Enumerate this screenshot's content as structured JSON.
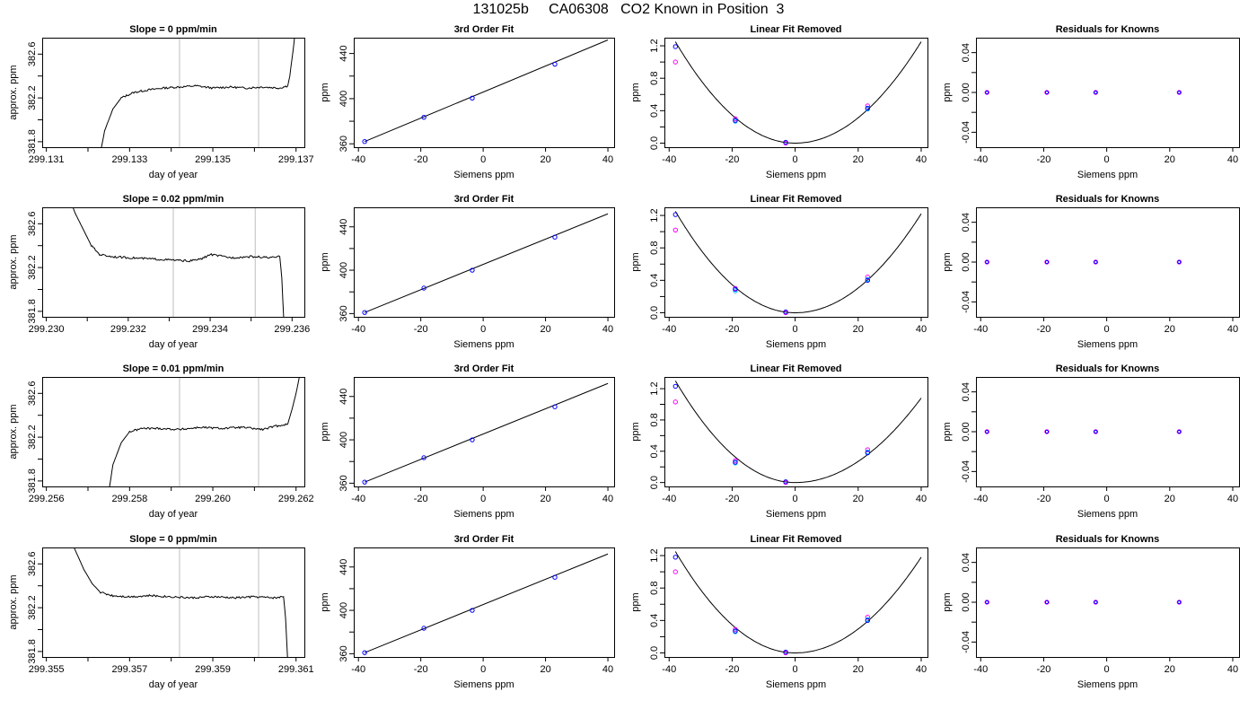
{
  "title": "131025b     CA06308   CO2 Known in Position  3",
  "colors": {
    "axis": "#000000",
    "line": "#000000",
    "vline": "#bebebe",
    "pt_blue": "#0000ff",
    "pt_magenta": "#ff00ff",
    "pt_cyan": "#00bfff"
  },
  "chart_data": [
    {
      "row": 1,
      "col": 1,
      "type": "line",
      "title": "Slope =  0  ppm/min",
      "xlabel": "day of year",
      "ylabel": "approx. ppm",
      "xlim": [
        299.1309,
        299.1372
      ],
      "ylim": [
        381.75,
        382.75
      ],
      "xticks": [
        299.131,
        299.132,
        299.133,
        299.134,
        299.135,
        299.136,
        299.137
      ],
      "xticklabels": [
        "299.131",
        "",
        "299.133",
        "",
        "299.135",
        "",
        "299.137"
      ],
      "yticks": [
        381.8,
        382.0,
        382.2,
        382.4,
        382.6
      ],
      "yticklabels": [
        "381.8",
        "",
        "382.2",
        "",
        "382.6"
      ],
      "vlines": [
        299.1342,
        299.1361
      ],
      "x": [
        299.1323,
        299.1324,
        299.1326,
        299.1328,
        299.1331,
        299.1334,
        299.1338,
        299.1342,
        299.1346,
        299.135,
        299.1354,
        299.1358,
        299.1362,
        299.1366,
        299.1368,
        299.13685,
        299.1369,
        299.13695,
        299.137
      ],
      "y": [
        381.7,
        381.9,
        382.1,
        382.2,
        382.25,
        382.27,
        382.29,
        382.3,
        382.31,
        382.29,
        382.3,
        382.29,
        382.3,
        382.29,
        382.31,
        382.4,
        382.55,
        382.7,
        382.9
      ]
    },
    {
      "row": 1,
      "col": 2,
      "type": "scatter",
      "title": "3rd Order Fit",
      "xlabel": "Siemens ppm",
      "ylabel": "ppm",
      "xlim": [
        -41.5,
        42
      ],
      "ylim": [
        357,
        454
      ],
      "xticks": [
        -40,
        -20,
        0,
        20,
        40
      ],
      "xticklabels": [
        "-40",
        "-20",
        "0",
        "20",
        "40"
      ],
      "yticks": [
        360,
        380,
        400,
        420,
        440
      ],
      "yticklabels": [
        "360",
        "",
        "400",
        "",
        "440"
      ],
      "fit_line": {
        "x": [
          -38,
          40
        ],
        "y": [
          362,
          452
        ]
      },
      "points": {
        "x": [
          -38,
          -19,
          -3.5,
          23
        ],
        "y": [
          362,
          383.5,
          400.5,
          430.5
        ]
      }
    },
    {
      "row": 1,
      "col": 3,
      "type": "scatter",
      "title": "Linear Fit Removed",
      "xlabel": "Siemens ppm",
      "ylabel": "ppm",
      "xlim": [
        -41.5,
        42
      ],
      "ylim": [
        -0.05,
        1.3
      ],
      "xticks": [
        -40,
        -20,
        0,
        20,
        40
      ],
      "xticklabels": [
        "-40",
        "-20",
        "0",
        "20",
        "40"
      ],
      "yticks": [
        0.0,
        0.2,
        0.4,
        0.6,
        0.8,
        1.0,
        1.2
      ],
      "yticklabels": [
        "0.0",
        "",
        "0.4",
        "",
        "0.8",
        "",
        "1.2"
      ],
      "curve": {
        "vertex_x": 0,
        "vertex_y": 0,
        "left_x": -38,
        "left_y": 1.25,
        "right_x": 40,
        "right_y": 1.25
      },
      "points_blue": {
        "x": [
          -38,
          -19,
          -3,
          23
        ],
        "y": [
          1.19,
          0.28,
          0.01,
          0.43
        ]
      },
      "points_magenta": {
        "x": [
          -38,
          -19,
          -3,
          23
        ],
        "y": [
          1.0,
          0.3,
          0.0,
          0.46
        ]
      },
      "points_cyan": {
        "x": [
          -19,
          23
        ],
        "y": [
          0.27,
          0.42
        ]
      }
    },
    {
      "row": 1,
      "col": 4,
      "type": "scatter",
      "title": "Residuals for Knowns",
      "xlabel": "Siemens ppm",
      "ylabel": "ppm",
      "xlim": [
        -41.5,
        42
      ],
      "ylim": [
        -0.055,
        0.055
      ],
      "xticks": [
        -40,
        -20,
        0,
        20,
        40
      ],
      "xticklabels": [
        "-40",
        "-20",
        "0",
        "20",
        "40"
      ],
      "yticks": [
        -0.04,
        -0.02,
        0.0,
        0.02,
        0.04
      ],
      "yticklabels": [
        "-0.04",
        "",
        "0.00",
        "",
        "0.04"
      ],
      "points": {
        "x": [
          -38,
          -19,
          -3.5,
          23
        ],
        "y": [
          0,
          0,
          0,
          0
        ]
      }
    },
    {
      "row": 2,
      "col": 1,
      "type": "line",
      "title": "Slope =  0.02  ppm/min",
      "xlabel": "day of year",
      "ylabel": "approx. ppm",
      "xlim": [
        299.2299,
        299.2363
      ],
      "ylim": [
        381.75,
        382.75
      ],
      "xticks": [
        299.23,
        299.231,
        299.232,
        299.233,
        299.234,
        299.235,
        299.236
      ],
      "xticklabels": [
        "299.230",
        "",
        "299.232",
        "",
        "299.234",
        "",
        "299.236"
      ],
      "vlines": [
        299.2331,
        299.2351
      ],
      "yticks": [
        381.8,
        382.0,
        382.2,
        382.4,
        382.6
      ],
      "yticklabels": [
        "381.8",
        "",
        "382.2",
        "",
        "382.6"
      ],
      "x": [
        299.2305,
        299.2307,
        299.2309,
        299.2311,
        299.2313,
        299.2316,
        299.232,
        299.2325,
        299.233,
        299.2335,
        299.2338,
        299.234,
        299.2345,
        299.235,
        299.2355,
        299.2357,
        299.23575,
        299.2358
      ],
      "y": [
        382.9,
        382.7,
        382.55,
        382.4,
        382.32,
        382.3,
        382.29,
        382.28,
        382.27,
        382.26,
        382.28,
        382.32,
        382.29,
        382.3,
        382.29,
        382.3,
        382.1,
        381.7
      ]
    },
    {
      "row": 2,
      "col": 2,
      "type": "scatter",
      "title": "3rd Order Fit",
      "xlabel": "Siemens ppm",
      "ylabel": "ppm",
      "xlim": [
        -41.5,
        42
      ],
      "ylim": [
        357,
        458
      ],
      "xticks": [
        -40,
        -20,
        0,
        20,
        40
      ],
      "xticklabels": [
        "-40",
        "-20",
        "0",
        "20",
        "40"
      ],
      "yticks": [
        360,
        380,
        400,
        420,
        440
      ],
      "yticklabels": [
        "360",
        "",
        "400",
        "",
        "440"
      ],
      "fit_line": {
        "x": [
          -38,
          40
        ],
        "y": [
          361,
          452
        ]
      },
      "points": {
        "x": [
          -38,
          -19,
          -3.5,
          23
        ],
        "y": [
          361,
          383.5,
          400,
          430.5
        ]
      }
    },
    {
      "row": 2,
      "col": 3,
      "type": "scatter",
      "title": "Linear Fit Removed",
      "xlabel": "Siemens ppm",
      "ylabel": "ppm",
      "xlim": [
        -41.5,
        42
      ],
      "ylim": [
        -0.05,
        1.3
      ],
      "xticks": [
        -40,
        -20,
        0,
        20,
        40
      ],
      "xticklabels": [
        "-40",
        "-20",
        "0",
        "20",
        "40"
      ],
      "yticks": [
        0.0,
        0.2,
        0.4,
        0.6,
        0.8,
        1.0,
        1.2
      ],
      "yticklabels": [
        "0.0",
        "",
        "0.4",
        "",
        "0.8",
        "",
        "1.2"
      ],
      "curve": {
        "vertex_x": 0,
        "vertex_y": 0,
        "left_x": -38,
        "left_y": 1.25,
        "right_x": 40,
        "right_y": 1.22
      },
      "points_blue": {
        "x": [
          -38,
          -19,
          -3,
          23
        ],
        "y": [
          1.21,
          0.29,
          0.01,
          0.4
        ]
      },
      "points_magenta": {
        "x": [
          -38,
          -19,
          -3,
          23
        ],
        "y": [
          1.02,
          0.3,
          0.0,
          0.44
        ]
      },
      "points_cyan": {
        "x": [
          -19,
          23
        ],
        "y": [
          0.27,
          0.41
        ]
      }
    },
    {
      "row": 2,
      "col": 4,
      "type": "scatter",
      "title": "Residuals for Knowns",
      "xlabel": "Siemens ppm",
      "ylabel": "ppm",
      "xlim": [
        -41.5,
        42
      ],
      "ylim": [
        -0.055,
        0.055
      ],
      "xticks": [
        -40,
        -20,
        0,
        20,
        40
      ],
      "xticklabels": [
        "-40",
        "-20",
        "0",
        "20",
        "40"
      ],
      "yticks": [
        -0.04,
        -0.02,
        0.0,
        0.02,
        0.04
      ],
      "yticklabels": [
        "-0.04",
        "",
        "0.00",
        "",
        "0.04"
      ],
      "points": {
        "x": [
          -38,
          -19,
          -3.5,
          23
        ],
        "y": [
          0,
          0,
          0,
          0
        ]
      }
    },
    {
      "row": 3,
      "col": 1,
      "type": "line",
      "title": "Slope =  0.01  ppm/min",
      "xlabel": "day of year",
      "ylabel": "approx. ppm",
      "xlim": [
        299.2559,
        299.2622
      ],
      "ylim": [
        381.75,
        382.75
      ],
      "xticks": [
        299.256,
        299.257,
        299.258,
        299.259,
        299.26,
        299.261,
        299.262
      ],
      "xticklabels": [
        "299.256",
        "",
        "299.258",
        "",
        "299.260",
        "",
        "299.262"
      ],
      "vlines": [
        299.2592,
        299.2611
      ],
      "yticks": [
        381.8,
        382.0,
        382.2,
        382.4,
        382.6
      ],
      "yticklabels": [
        "381.8",
        "",
        "382.2",
        "",
        "382.6"
      ],
      "x": [
        299.2575,
        299.2576,
        299.2578,
        299.258,
        299.2583,
        299.2587,
        299.2592,
        299.2597,
        299.2602,
        299.2607,
        299.2612,
        299.2615,
        299.2618,
        299.2619,
        299.262,
        299.26208,
        299.2621
      ],
      "y": [
        381.7,
        381.95,
        382.15,
        382.25,
        382.28,
        382.28,
        382.27,
        382.29,
        382.28,
        382.29,
        382.27,
        382.3,
        382.32,
        382.45,
        382.6,
        382.75,
        382.9
      ]
    },
    {
      "row": 3,
      "col": 2,
      "type": "scatter",
      "title": "3rd Order Fit",
      "xlabel": "Siemens ppm",
      "ylabel": "ppm",
      "xlim": [
        -41.5,
        42
      ],
      "ylim": [
        357,
        458
      ],
      "xticks": [
        -40,
        -20,
        0,
        20,
        40
      ],
      "xticklabels": [
        "-40",
        "-20",
        "0",
        "20",
        "40"
      ],
      "yticks": [
        360,
        380,
        400,
        420,
        440
      ],
      "yticklabels": [
        "360",
        "",
        "400",
        "",
        "440"
      ],
      "fit_line": {
        "x": [
          -38,
          40
        ],
        "y": [
          361,
          452
        ]
      },
      "points": {
        "x": [
          -38,
          -19,
          -3.5,
          23
        ],
        "y": [
          361,
          383.5,
          400,
          430.5
        ]
      }
    },
    {
      "row": 3,
      "col": 3,
      "type": "scatter",
      "title": "Linear Fit Removed",
      "xlabel": "Siemens ppm",
      "ylabel": "ppm",
      "xlim": [
        -41.5,
        42
      ],
      "ylim": [
        -0.05,
        1.35
      ],
      "xticks": [
        -40,
        -20,
        0,
        20,
        40
      ],
      "xticklabels": [
        "-40",
        "-20",
        "0",
        "20",
        "40"
      ],
      "yticks": [
        0.0,
        0.2,
        0.4,
        0.6,
        0.8,
        1.0,
        1.2
      ],
      "yticklabels": [
        "0.0",
        "",
        "0.4",
        "",
        "0.8",
        "",
        "1.2"
      ],
      "curve": {
        "vertex_x": 0,
        "vertex_y": 0,
        "left_x": -38,
        "left_y": 1.3,
        "right_x": 40,
        "right_y": 1.08
      },
      "points_blue": {
        "x": [
          -38,
          -19,
          -3,
          23
        ],
        "y": [
          1.23,
          0.26,
          0.01,
          0.38
        ]
      },
      "points_magenta": {
        "x": [
          -38,
          -19,
          -3,
          23
        ],
        "y": [
          1.03,
          0.28,
          0.0,
          0.42
        ]
      },
      "points_cyan": {
        "x": [
          -19,
          23
        ],
        "y": [
          0.25,
          0.39
        ]
      }
    },
    {
      "row": 3,
      "col": 4,
      "type": "scatter",
      "title": "Residuals for Knowns",
      "xlabel": "Siemens ppm",
      "ylabel": "ppm",
      "xlim": [
        -41.5,
        42
      ],
      "ylim": [
        -0.055,
        0.055
      ],
      "xticks": [
        -40,
        -20,
        0,
        20,
        40
      ],
      "xticklabels": [
        "-40",
        "-20",
        "0",
        "20",
        "40"
      ],
      "yticks": [
        -0.04,
        -0.02,
        0.0,
        0.02,
        0.04
      ],
      "yticklabels": [
        "-0.04",
        "",
        "0.00",
        "",
        "0.04"
      ],
      "points": {
        "x": [
          -38,
          -19,
          -3.5,
          23
        ],
        "y": [
          0,
          0,
          0,
          0
        ]
      }
    },
    {
      "row": 4,
      "col": 1,
      "type": "line",
      "title": "Slope =  0  ppm/min",
      "xlabel": "day of year",
      "ylabel": "approx. ppm",
      "xlim": [
        299.3549,
        299.3612
      ],
      "ylim": [
        381.75,
        382.75
      ],
      "xticks": [
        299.355,
        299.356,
        299.357,
        299.358,
        299.359,
        299.36,
        299.361
      ],
      "xticklabels": [
        "299.355",
        "",
        "299.357",
        "",
        "299.359",
        "",
        "299.361"
      ],
      "vlines": [
        299.3582,
        299.3601
      ],
      "yticks": [
        381.8,
        382.0,
        382.2,
        382.4,
        382.6
      ],
      "yticklabels": [
        "381.8",
        "",
        "382.2",
        "",
        "382.6"
      ],
      "x": [
        299.3555,
        299.3557,
        299.3559,
        299.3561,
        299.3563,
        299.3566,
        299.357,
        299.3575,
        299.358,
        299.3585,
        299.359,
        299.3595,
        299.36,
        299.3605,
        299.3607,
        299.36075,
        299.3608
      ],
      "y": [
        382.9,
        382.72,
        382.55,
        382.42,
        382.34,
        382.31,
        382.3,
        382.31,
        382.3,
        382.29,
        382.3,
        382.29,
        382.3,
        382.29,
        382.3,
        382.1,
        381.7
      ]
    },
    {
      "row": 4,
      "col": 2,
      "type": "scatter",
      "title": "3rd Order Fit",
      "xlabel": "Siemens ppm",
      "ylabel": "ppm",
      "xlim": [
        -41.5,
        42
      ],
      "ylim": [
        357,
        458
      ],
      "xticks": [
        -40,
        -20,
        0,
        20,
        40
      ],
      "xticklabels": [
        "-40",
        "-20",
        "0",
        "20",
        "40"
      ],
      "yticks": [
        360,
        380,
        400,
        420,
        440
      ],
      "yticklabels": [
        "360",
        "",
        "400",
        "",
        "440"
      ],
      "fit_line": {
        "x": [
          -38,
          40
        ],
        "y": [
          361,
          452
        ]
      },
      "points": {
        "x": [
          -38,
          -19,
          -3.5,
          23
        ],
        "y": [
          361,
          383.5,
          400,
          430.5
        ]
      }
    },
    {
      "row": 4,
      "col": 3,
      "type": "scatter",
      "title": "Linear Fit Removed",
      "xlabel": "Siemens ppm",
      "ylabel": "ppm",
      "xlim": [
        -41.5,
        42
      ],
      "ylim": [
        -0.05,
        1.3
      ],
      "xticks": [
        -40,
        -20,
        0,
        20,
        40
      ],
      "xticklabels": [
        "-40",
        "-20",
        "0",
        "20",
        "40"
      ],
      "yticks": [
        0.0,
        0.2,
        0.4,
        0.6,
        0.8,
        1.0,
        1.2
      ],
      "yticklabels": [
        "0.0",
        "",
        "0.4",
        "",
        "0.8",
        "",
        "1.2"
      ],
      "curve": {
        "vertex_x": 0,
        "vertex_y": 0,
        "left_x": -38,
        "left_y": 1.25,
        "right_x": 40,
        "right_y": 1.18
      },
      "points_blue": {
        "x": [
          -38,
          -19,
          -3,
          23
        ],
        "y": [
          1.18,
          0.27,
          0.01,
          0.4
        ]
      },
      "points_magenta": {
        "x": [
          -38,
          -19,
          -3,
          23
        ],
        "y": [
          1.0,
          0.29,
          0.0,
          0.44
        ]
      },
      "points_cyan": {
        "x": [
          -19,
          23
        ],
        "y": [
          0.26,
          0.41
        ]
      }
    },
    {
      "row": 4,
      "col": 4,
      "type": "scatter",
      "title": "Residuals for Knowns",
      "xlabel": "Siemens ppm",
      "ylabel": "ppm",
      "xlim": [
        -41.5,
        42
      ],
      "ylim": [
        -0.055,
        0.055
      ],
      "xticks": [
        -40,
        -20,
        0,
        20,
        40
      ],
      "xticklabels": [
        "-40",
        "-20",
        "0",
        "20",
        "40"
      ],
      "yticks": [
        -0.04,
        -0.02,
        0.0,
        0.02,
        0.04
      ],
      "yticklabels": [
        "-0.04",
        "",
        "0.00",
        "",
        "0.04"
      ],
      "points": {
        "x": [
          -38,
          -19,
          -3.5,
          23
        ],
        "y": [
          0,
          0,
          0,
          0
        ]
      }
    }
  ]
}
